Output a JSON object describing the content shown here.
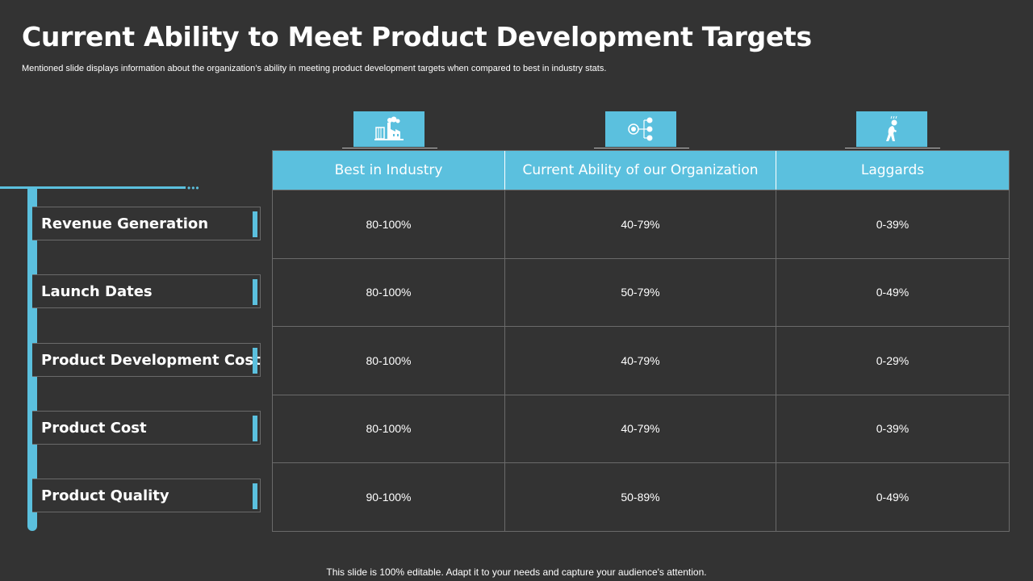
{
  "slide": {
    "title": "Current Ability to Meet Product Development Targets",
    "subtitle": "Mentioned slide displays information about the organization’s ability in meeting product development targets when compared to best in industry stats.",
    "footer": "This slide is 100% editable. Adapt it to your needs and capture your audience's attention.",
    "accent_color": "#5bc0de",
    "background_color": "#333333"
  },
  "icons": [
    "factory-icon",
    "network-diagram-icon",
    "tired-person-icon"
  ],
  "categories": [
    "Revenue Generation",
    "Launch Dates",
    "Product Development Cost",
    "Product Cost",
    "Product Quality"
  ],
  "table": {
    "headers": [
      "Best in Industry",
      "Current Ability of our Organization",
      "Laggards"
    ],
    "rows": [
      [
        "80-100%",
        "40-79%",
        "0-39%"
      ],
      [
        "80-100%",
        "50-79%",
        "0-49%"
      ],
      [
        "80-100%",
        "40-79%",
        "0-29%"
      ],
      [
        "80-100%",
        "40-79%",
        "0-39%"
      ],
      [
        "90-100%",
        "50-89%",
        "0-49%"
      ]
    ]
  }
}
